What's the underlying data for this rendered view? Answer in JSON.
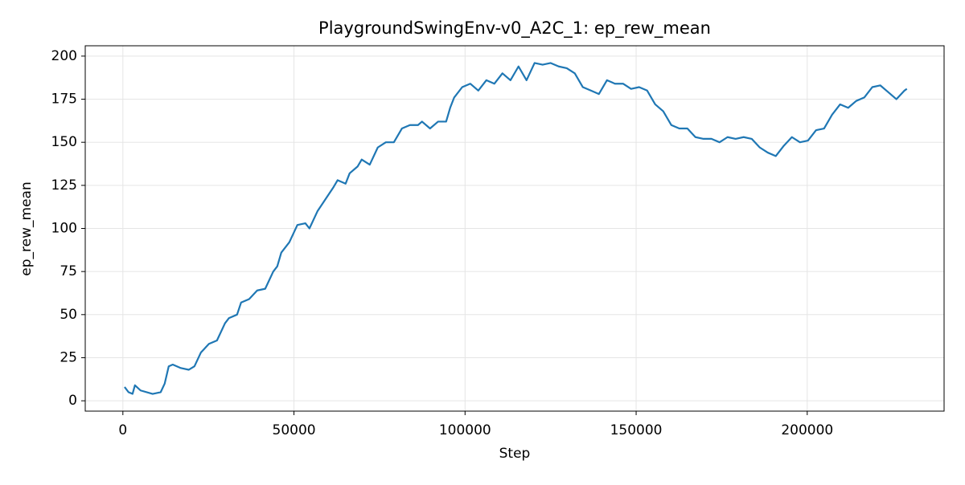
{
  "chart_data": {
    "type": "line",
    "title": "PlaygroundSwingEnv-v0_A2C_1: ep_rew_mean",
    "x_label": "Step",
    "y_label": "ep_rew_mean",
    "x": [
      500,
      1645,
      2820,
      3525,
      5170,
      8695,
      11045,
      12220,
      13395,
      14570,
      16920,
      19270,
      20915,
      22795,
      25145,
      27495,
      29845,
      31020,
      33370,
      34545,
      36895,
      39245,
      41595,
      43945,
      45120,
      46295,
      48645,
      50995,
      53345,
      54520,
      56870,
      59220,
      61570,
      62745,
      65095,
      66270,
      68620,
      69795,
      72145,
      74495,
      76845,
      79195,
      81545,
      83895,
      86245,
      87420,
      89770,
      92120,
      94470,
      95645,
      96820,
      99170,
      101520,
      103870,
      106220,
      108570,
      110920,
      113270,
      115620,
      117970,
      120320,
      122670,
      125020,
      127370,
      129720,
      132070,
      134420,
      136770,
      139120,
      141470,
      143820,
      146170,
      148520,
      150870,
      153220,
      155570,
      157920,
      160270,
      162620,
      164970,
      167320,
      169670,
      172020,
      174370,
      176720,
      179070,
      181420,
      183770,
      186120,
      188470,
      190820,
      193170,
      195520,
      197870,
      200220,
      202570,
      204920,
      207270,
      209620,
      211970,
      214320,
      216670,
      219020,
      221370,
      223720,
      226070,
      228420,
      229125
    ],
    "series": [
      {
        "name": "ep_rew_mean",
        "color": "#1f77b4",
        "values": [
          8,
          5,
          4,
          9,
          6,
          4,
          5,
          10,
          20,
          21,
          19,
          18,
          20,
          28,
          33,
          35,
          45,
          48,
          50,
          57,
          59,
          64,
          65,
          75,
          78,
          86,
          92,
          102,
          103,
          100,
          110,
          117,
          124,
          128,
          126,
          132,
          136,
          140,
          137,
          147,
          150,
          150,
          158,
          160,
          160,
          162,
          158,
          162,
          162,
          170,
          176,
          182,
          184,
          180,
          186,
          184,
          190,
          186,
          194,
          186,
          196,
          195,
          196,
          194,
          193,
          190,
          182,
          180,
          178,
          186,
          184,
          184,
          181,
          182,
          180,
          172,
          168,
          160,
          158,
          158,
          153,
          152,
          152,
          150,
          153,
          152,
          153,
          152,
          147,
          144,
          142,
          148,
          153,
          150,
          151,
          157,
          158,
          166,
          172,
          170,
          174,
          176,
          182,
          183,
          179,
          175,
          180,
          181
        ]
      }
    ],
    "xlim": [
      -11000,
      240000
    ],
    "ylim": [
      -6,
      206
    ],
    "xticks": [
      0,
      50000,
      100000,
      150000,
      200000
    ],
    "yticks": [
      0,
      25,
      50,
      75,
      100,
      125,
      150,
      175,
      200
    ],
    "grid": true
  }
}
